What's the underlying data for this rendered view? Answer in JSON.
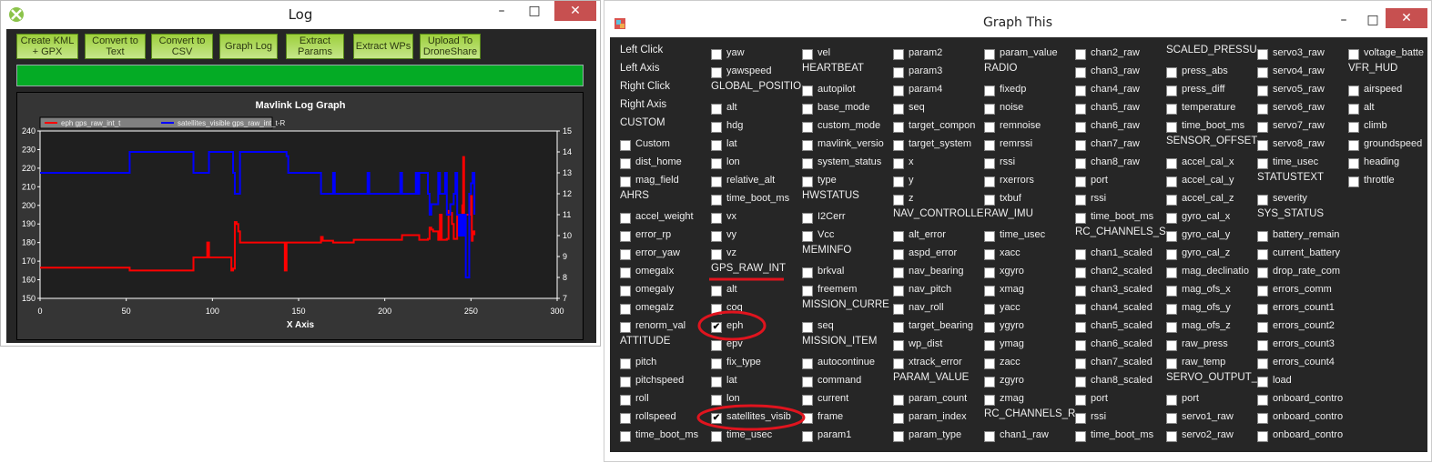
{
  "log_window": {
    "title": "Log",
    "buttons": [
      "Create KML + GPX",
      "Convert to Text",
      "Convert to CSV",
      "Graph Log",
      "Extract Params",
      "Extract WPs",
      "Upload To DroneShare"
    ],
    "progress_percent": 100,
    "progress_color": "#04ab25",
    "button_color": "#9dcf3c"
  },
  "chart_data": {
    "type": "line",
    "title": "Mavlink Log Graph",
    "xlabel": "X Axis",
    "xlim": [
      0,
      300
    ],
    "ylim": [
      150,
      240
    ],
    "y2lim": [
      7,
      15
    ],
    "xticks": [
      0,
      50,
      100,
      150,
      200,
      250,
      300
    ],
    "yticks": [
      150,
      160,
      170,
      180,
      190,
      200,
      210,
      220,
      230,
      240
    ],
    "y2ticks": [
      7,
      8,
      9,
      10,
      11,
      12,
      13,
      14,
      15
    ],
    "legend_placement": "top-left",
    "series": [
      {
        "name": "eph gps_raw_int_t",
        "color": "#ff0000",
        "axis": "left",
        "x": [
          0,
          51,
          52,
          88,
          89,
          97,
          98,
          111,
          112,
          113,
          114,
          115,
          116,
          142,
          143,
          144,
          162,
          163,
          164,
          170,
          171,
          182,
          209,
          210,
          220,
          225,
          226,
          227,
          228,
          231,
          232,
          233,
          236,
          237,
          238,
          239,
          240,
          241,
          242,
          243,
          244,
          245,
          245.5,
          246,
          247,
          249,
          250,
          250.5,
          251,
          252
        ],
        "y": [
          166.5,
          166.5,
          165,
          165,
          172,
          180,
          172,
          165,
          166,
          191,
          190,
          186,
          180,
          165,
          180,
          180,
          180,
          183,
          181,
          180,
          180,
          181.5,
          181.5,
          184,
          181.5,
          182,
          188,
          187,
          186,
          181.5,
          195,
          181.5,
          182,
          197,
          196,
          190,
          182,
          182,
          194,
          193,
          190,
          200,
          226,
          195,
          195,
          195,
          205,
          181,
          186,
          184
        ]
      },
      {
        "name": "satellites_visible gps_raw_int_t-R",
        "color": "#0000ff",
        "axis": "right",
        "x": [
          0,
          51,
          52,
          88,
          89,
          97,
          98,
          111,
          112,
          113,
          114,
          116,
          142,
          143,
          144,
          162,
          163,
          170,
          171,
          190,
          191,
          209,
          210,
          218,
          219,
          220,
          225,
          226,
          227,
          231,
          232,
          235,
          236,
          238,
          240,
          241,
          242,
          243,
          244,
          245,
          246,
          247,
          249,
          250,
          251,
          252
        ],
        "y": [
          13,
          13,
          14,
          14,
          13,
          13,
          14,
          14,
          13,
          12,
          12,
          14,
          14,
          13.8,
          13,
          13,
          12,
          13,
          12,
          13,
          12,
          13,
          12,
          13,
          12,
          13,
          12,
          11,
          11.5,
          13,
          12,
          13,
          11,
          11.5,
          12,
          13,
          11,
          10,
          11,
          10,
          11,
          8,
          12,
          12.5,
          13,
          11
        ]
      }
    ]
  },
  "graph_window": {
    "title": "Graph This",
    "annotation_color": "#e0141e",
    "columns": [
      [
        {
          "t": "Left Click",
          "h": 1
        },
        {
          "t": "Left Axis",
          "h": 1
        },
        {
          "t": "Right Click",
          "h": 1
        },
        {
          "t": "Right Axis",
          "h": 1
        },
        {
          "t": "CUSTOM",
          "h": 1
        },
        {
          "t": "Custom"
        },
        {
          "t": "dist_home"
        },
        {
          "t": "mag_field"
        },
        {
          "t": "AHRS",
          "h": 1
        },
        {
          "t": "accel_weight"
        },
        {
          "t": "error_rp"
        },
        {
          "t": "error_yaw"
        },
        {
          "t": "omegaIx"
        },
        {
          "t": "omegaIy"
        },
        {
          "t": "omegaIz"
        },
        {
          "t": "renorm_val"
        },
        {
          "t": "ATTITUDE",
          "h": 1
        },
        {
          "t": "pitch"
        },
        {
          "t": "pitchspeed"
        },
        {
          "t": "roll"
        },
        {
          "t": "rollspeed"
        },
        {
          "t": "time_boot_ms"
        }
      ],
      [
        {
          "t": "yaw"
        },
        {
          "t": "yawspeed"
        },
        {
          "t": "GLOBAL_POSITIO",
          "h": 1
        },
        {
          "t": "alt"
        },
        {
          "t": "hdg"
        },
        {
          "t": "lat"
        },
        {
          "t": "lon"
        },
        {
          "t": "relative_alt"
        },
        {
          "t": "time_boot_ms"
        },
        {
          "t": "vx"
        },
        {
          "t": "vy"
        },
        {
          "t": "vz"
        },
        {
          "t": "GPS_RAW_INT",
          "h": 1
        },
        {
          "t": "alt"
        },
        {
          "t": "cog"
        },
        {
          "t": "eph",
          "c": 1
        },
        {
          "t": "epv"
        },
        {
          "t": "fix_type"
        },
        {
          "t": "lat"
        },
        {
          "t": "lon"
        },
        {
          "t": "satellites_visib",
          "c": 1
        },
        {
          "t": "time_usec"
        }
      ],
      [
        {
          "t": "vel"
        },
        {
          "t": "HEARTBEAT",
          "h": 1
        },
        {
          "t": "autopilot"
        },
        {
          "t": "base_mode"
        },
        {
          "t": "custom_mode"
        },
        {
          "t": "mavlink_versio"
        },
        {
          "t": "system_status"
        },
        {
          "t": "type"
        },
        {
          "t": "HWSTATUS",
          "h": 1
        },
        {
          "t": "I2Cerr"
        },
        {
          "t": "Vcc"
        },
        {
          "t": "MEMINFO",
          "h": 1
        },
        {
          "t": "brkval"
        },
        {
          "t": "freemem"
        },
        {
          "t": "MISSION_CURRE",
          "h": 1
        },
        {
          "t": "seq"
        },
        {
          "t": "MISSION_ITEM",
          "h": 1
        },
        {
          "t": "autocontinue"
        },
        {
          "t": "command"
        },
        {
          "t": "current"
        },
        {
          "t": "frame"
        },
        {
          "t": "param1"
        }
      ],
      [
        {
          "t": "param2"
        },
        {
          "t": "param3"
        },
        {
          "t": "param4"
        },
        {
          "t": "seq"
        },
        {
          "t": "target_compon"
        },
        {
          "t": "target_system"
        },
        {
          "t": "x"
        },
        {
          "t": "y"
        },
        {
          "t": "z"
        },
        {
          "t": "NAV_CONTROLLE",
          "h": 1
        },
        {
          "t": "alt_error"
        },
        {
          "t": "aspd_error"
        },
        {
          "t": "nav_bearing"
        },
        {
          "t": "nav_pitch"
        },
        {
          "t": "nav_roll"
        },
        {
          "t": "target_bearing"
        },
        {
          "t": "wp_dist"
        },
        {
          "t": "xtrack_error"
        },
        {
          "t": "PARAM_VALUE",
          "h": 1
        },
        {
          "t": "param_count"
        },
        {
          "t": "param_index"
        },
        {
          "t": "param_type"
        }
      ],
      [
        {
          "t": "param_value"
        },
        {
          "t": "RADIO",
          "h": 1
        },
        {
          "t": "fixedp"
        },
        {
          "t": "noise"
        },
        {
          "t": "remnoise"
        },
        {
          "t": "remrssi"
        },
        {
          "t": "rssi"
        },
        {
          "t": "rxerrors"
        },
        {
          "t": "txbuf"
        },
        {
          "t": "RAW_IMU",
          "h": 1
        },
        {
          "t": "time_usec"
        },
        {
          "t": "xacc"
        },
        {
          "t": "xgyro"
        },
        {
          "t": "xmag"
        },
        {
          "t": "yacc"
        },
        {
          "t": "ygyro"
        },
        {
          "t": "ymag"
        },
        {
          "t": "zacc"
        },
        {
          "t": "zgyro"
        },
        {
          "t": "zmag"
        },
        {
          "t": "RC_CHANNELS_R",
          "h": 1
        },
        {
          "t": "chan1_raw"
        }
      ],
      [
        {
          "t": "chan2_raw"
        },
        {
          "t": "chan3_raw"
        },
        {
          "t": "chan4_raw"
        },
        {
          "t": "chan5_raw"
        },
        {
          "t": "chan6_raw"
        },
        {
          "t": "chan7_raw"
        },
        {
          "t": "chan8_raw"
        },
        {
          "t": "port"
        },
        {
          "t": "rssi"
        },
        {
          "t": "time_boot_ms"
        },
        {
          "t": "RC_CHANNELS_S",
          "h": 1
        },
        {
          "t": "chan1_scaled"
        },
        {
          "t": "chan2_scaled"
        },
        {
          "t": "chan3_scaled"
        },
        {
          "t": "chan4_scaled"
        },
        {
          "t": "chan5_scaled"
        },
        {
          "t": "chan6_scaled"
        },
        {
          "t": "chan7_scaled"
        },
        {
          "t": "chan8_scaled"
        },
        {
          "t": "port"
        },
        {
          "t": "rssi"
        },
        {
          "t": "time_boot_ms"
        }
      ],
      [
        {
          "t": "SCALED_PRESSU",
          "h": 1
        },
        {
          "t": "press_abs"
        },
        {
          "t": "press_diff"
        },
        {
          "t": "temperature"
        },
        {
          "t": "time_boot_ms"
        },
        {
          "t": "SENSOR_OFFSET",
          "h": 1
        },
        {
          "t": "accel_cal_x"
        },
        {
          "t": "accel_cal_y"
        },
        {
          "t": "accel_cal_z"
        },
        {
          "t": "gyro_cal_x"
        },
        {
          "t": "gyro_cal_y"
        },
        {
          "t": "gyro_cal_z"
        },
        {
          "t": "mag_declinatio"
        },
        {
          "t": "mag_ofs_x"
        },
        {
          "t": "mag_ofs_y"
        },
        {
          "t": "mag_ofs_z"
        },
        {
          "t": "raw_press"
        },
        {
          "t": "raw_temp"
        },
        {
          "t": "SERVO_OUTPUT_",
          "h": 1
        },
        {
          "t": "port"
        },
        {
          "t": "servo1_raw"
        },
        {
          "t": "servo2_raw"
        }
      ],
      [
        {
          "t": "servo3_raw"
        },
        {
          "t": "servo4_raw"
        },
        {
          "t": "servo5_raw"
        },
        {
          "t": "servo6_raw"
        },
        {
          "t": "servo7_raw"
        },
        {
          "t": "servo8_raw"
        },
        {
          "t": "time_usec"
        },
        {
          "t": "STATUSTEXT",
          "h": 1
        },
        {
          "t": "severity"
        },
        {
          "t": "SYS_STATUS",
          "h": 1
        },
        {
          "t": "battery_remain"
        },
        {
          "t": "current_battery"
        },
        {
          "t": "drop_rate_com"
        },
        {
          "t": "errors_comm"
        },
        {
          "t": "errors_count1"
        },
        {
          "t": "errors_count2"
        },
        {
          "t": "errors_count3"
        },
        {
          "t": "errors_count4"
        },
        {
          "t": "load"
        },
        {
          "t": "onboard_contro"
        },
        {
          "t": "onboard_contro"
        },
        {
          "t": "onboard_contro"
        }
      ],
      [
        {
          "t": "voltage_batte"
        },
        {
          "t": "VFR_HUD",
          "h": 1
        },
        {
          "t": "airspeed"
        },
        {
          "t": "alt"
        },
        {
          "t": "climb"
        },
        {
          "t": "groundspeed"
        },
        {
          "t": "heading"
        },
        {
          "t": "throttle"
        }
      ]
    ]
  }
}
